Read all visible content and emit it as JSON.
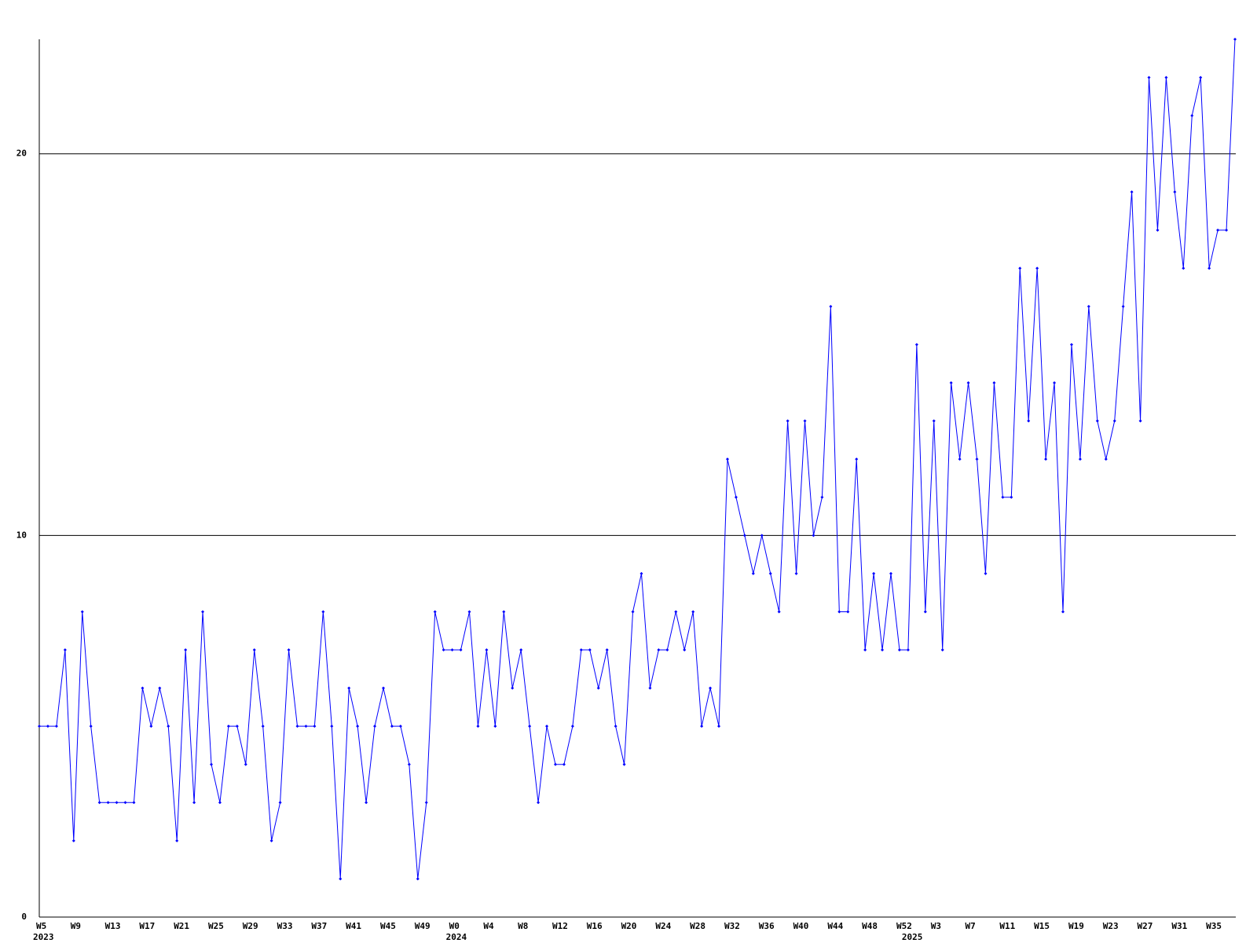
{
  "chart_data": {
    "type": "line",
    "categories": [
      "W5",
      null,
      null,
      null,
      "W9",
      null,
      null,
      null,
      "W13",
      null,
      null,
      null,
      "W17",
      null,
      null,
      null,
      "W21",
      null,
      null,
      null,
      "W25",
      null,
      null,
      null,
      "W29",
      null,
      null,
      null,
      "W33",
      null,
      null,
      null,
      "W37",
      null,
      null,
      null,
      "W41",
      null,
      null,
      null,
      "W45",
      null,
      null,
      null,
      "W49",
      null,
      null,
      null,
      "W0",
      null,
      null,
      null,
      "W4",
      null,
      null,
      null,
      "W8",
      null,
      null,
      null,
      "W12",
      null,
      null,
      null,
      "W16",
      null,
      null,
      null,
      "W20",
      null,
      null,
      null,
      "W24",
      null,
      null,
      null,
      "W28",
      null,
      null,
      null,
      "W32",
      null,
      null,
      null,
      "W36",
      null,
      null,
      null,
      "W40",
      null,
      null,
      null,
      "W44",
      null,
      null,
      null,
      "W48",
      null,
      null,
      null,
      "W52",
      null,
      null,
      null,
      "W3",
      null,
      null,
      null,
      "W7",
      null,
      null,
      null,
      "W11",
      null,
      null,
      null,
      "W15",
      null,
      null,
      null,
      "W19",
      null,
      null,
      null,
      "W23",
      null,
      null,
      null,
      "W27",
      null,
      null,
      null,
      "W31",
      null,
      null,
      null,
      "W35",
      null,
      null,
      null
    ],
    "year_row": [
      "2023",
      null,
      null,
      null,
      null,
      null,
      null,
      null,
      null,
      null,
      null,
      null,
      null,
      null,
      null,
      null,
      null,
      null,
      null,
      null,
      null,
      null,
      null,
      null,
      null,
      null,
      null,
      null,
      null,
      null,
      null,
      null,
      null,
      null,
      null,
      null,
      null,
      null,
      null,
      null,
      null,
      null,
      null,
      null,
      null,
      null,
      null,
      null,
      "2024",
      null,
      null,
      null,
      null,
      null,
      null,
      null,
      null,
      null,
      null,
      null,
      null,
      null,
      null,
      null,
      null,
      null,
      null,
      null,
      null,
      null,
      null,
      null,
      null,
      null,
      null,
      null,
      null,
      null,
      null,
      null,
      null,
      null,
      null,
      null,
      null,
      null,
      null,
      null,
      null,
      null,
      null,
      null,
      null,
      null,
      null,
      null,
      null,
      null,
      null,
      null,
      null,
      "2025",
      null,
      null,
      null,
      null,
      null,
      null,
      null,
      null,
      null,
      null,
      null,
      null,
      null,
      null,
      null,
      null,
      null,
      null,
      null,
      null,
      null,
      null,
      null,
      null,
      null,
      null,
      null,
      null,
      null,
      null,
      null,
      null,
      null,
      null,
      null,
      null,
      null
    ],
    "values": [
      5,
      5,
      5,
      7,
      2,
      8,
      5,
      3,
      3,
      3,
      3,
      3,
      6,
      5,
      6,
      5,
      2,
      7,
      3,
      8,
      4,
      3,
      5,
      5,
      4,
      7,
      5,
      2,
      3,
      7,
      5,
      5,
      5,
      8,
      5,
      1,
      6,
      5,
      3,
      5,
      6,
      5,
      5,
      4,
      1,
      3,
      8,
      7,
      7,
      7,
      8,
      5,
      7,
      5,
      8,
      6,
      7,
      5,
      3,
      5,
      4,
      4,
      5,
      7,
      7,
      6,
      7,
      5,
      4,
      8,
      9,
      6,
      7,
      7,
      8,
      7,
      8,
      5,
      6,
      5,
      12,
      11,
      10,
      9,
      10,
      9,
      8,
      13,
      9,
      13,
      10,
      11,
      16,
      8,
      8,
      12,
      7,
      9,
      7,
      9,
      7,
      7,
      15,
      8,
      13,
      7,
      14,
      12,
      14,
      12,
      9,
      14,
      11,
      11,
      17,
      13,
      17,
      12,
      14,
      8,
      15,
      12,
      16,
      13,
      12,
      13,
      16,
      19,
      13,
      22,
      18,
      22,
      19,
      17,
      21,
      22,
      17,
      18,
      18,
      23
    ],
    "color": "#0000ff",
    "ylim": [
      0,
      23
    ],
    "yticks": [
      0,
      10,
      20
    ],
    "grid": true
  }
}
